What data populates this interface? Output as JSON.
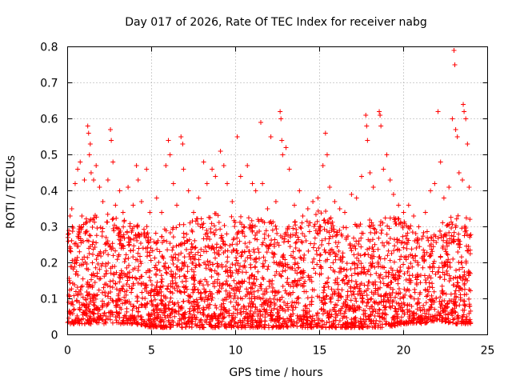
{
  "chart_data": {
    "type": "scatter",
    "title": "Day 017 of 2026, Rate Of TEC Index for receiver nabg",
    "xlabel": "GPS time / hours",
    "ylabel": "ROTI / TECUs",
    "xlim": [
      0,
      25
    ],
    "ylim": [
      0,
      0.8
    ],
    "xticks": [
      0,
      5,
      10,
      15,
      20,
      25
    ],
    "yticks": [
      0,
      0.1,
      0.2,
      0.3,
      0.4,
      0.5,
      0.6,
      0.7,
      0.8
    ],
    "xtick_labels": [
      "0",
      "5",
      "10",
      "15",
      "20",
      "25"
    ],
    "ytick_labels": [
      "0",
      "0.1",
      "0.2",
      "0.3",
      "0.4",
      "0.5",
      "0.6",
      "0.7",
      "0.8"
    ],
    "grid": true,
    "marker": "plus",
    "color": "#ff0000",
    "series": [
      {
        "points": [
          [
            0.05,
            0.26
          ],
          [
            0.15,
            0.33
          ],
          [
            0.25,
            0.35
          ],
          [
            0.45,
            0.42
          ],
          [
            0.6,
            0.46
          ],
          [
            0.75,
            0.48
          ],
          [
            0.85,
            0.33
          ],
          [
            1.0,
            0.43
          ],
          [
            1.2,
            0.58
          ],
          [
            1.25,
            0.56
          ],
          [
            1.3,
            0.5
          ],
          [
            1.35,
            0.53
          ],
          [
            1.4,
            0.45
          ],
          [
            1.55,
            0.43
          ],
          [
            1.7,
            0.47
          ],
          [
            1.9,
            0.41
          ],
          [
            2.1,
            0.37
          ],
          [
            2.4,
            0.43
          ],
          [
            2.55,
            0.57
          ],
          [
            2.6,
            0.54
          ],
          [
            2.7,
            0.48
          ],
          [
            2.85,
            0.36
          ],
          [
            3.1,
            0.4
          ],
          [
            3.3,
            0.34
          ],
          [
            3.6,
            0.41
          ],
          [
            3.9,
            0.36
          ],
          [
            4.1,
            0.47
          ],
          [
            4.2,
            0.43
          ],
          [
            4.4,
            0.37
          ],
          [
            4.7,
            0.46
          ],
          [
            4.9,
            0.34
          ],
          [
            5.3,
            0.38
          ],
          [
            5.6,
            0.34
          ],
          [
            5.85,
            0.47
          ],
          [
            6.0,
            0.54
          ],
          [
            6.1,
            0.5
          ],
          [
            6.3,
            0.42
          ],
          [
            6.5,
            0.36
          ],
          [
            6.75,
            0.55
          ],
          [
            6.85,
            0.53
          ],
          [
            6.9,
            0.46
          ],
          [
            7.2,
            0.4
          ],
          [
            7.5,
            0.34
          ],
          [
            7.8,
            0.38
          ],
          [
            8.1,
            0.48
          ],
          [
            8.3,
            0.42
          ],
          [
            8.6,
            0.46
          ],
          [
            8.8,
            0.44
          ],
          [
            9.1,
            0.51
          ],
          [
            9.3,
            0.47
          ],
          [
            9.5,
            0.42
          ],
          [
            9.8,
            0.37
          ],
          [
            10.1,
            0.55
          ],
          [
            10.3,
            0.44
          ],
          [
            10.7,
            0.47
          ],
          [
            11.0,
            0.42
          ],
          [
            11.2,
            0.4
          ],
          [
            11.5,
            0.59
          ],
          [
            11.6,
            0.42
          ],
          [
            11.9,
            0.35
          ],
          [
            12.1,
            0.55
          ],
          [
            12.4,
            0.37
          ],
          [
            12.65,
            0.62
          ],
          [
            12.7,
            0.6
          ],
          [
            12.75,
            0.54
          ],
          [
            12.8,
            0.5
          ],
          [
            13.0,
            0.52
          ],
          [
            13.2,
            0.46
          ],
          [
            13.5,
            0.36
          ],
          [
            13.8,
            0.4
          ],
          [
            14.0,
            0.33
          ],
          [
            14.3,
            0.35
          ],
          [
            14.6,
            0.37
          ],
          [
            14.9,
            0.38
          ],
          [
            15.2,
            0.47
          ],
          [
            15.35,
            0.56
          ],
          [
            15.45,
            0.5
          ],
          [
            15.6,
            0.41
          ],
          [
            15.9,
            0.37
          ],
          [
            16.2,
            0.35
          ],
          [
            16.5,
            0.34
          ],
          [
            16.9,
            0.39
          ],
          [
            17.2,
            0.38
          ],
          [
            17.5,
            0.44
          ],
          [
            17.75,
            0.61
          ],
          [
            17.8,
            0.58
          ],
          [
            17.85,
            0.54
          ],
          [
            18.0,
            0.45
          ],
          [
            18.2,
            0.41
          ],
          [
            18.55,
            0.62
          ],
          [
            18.6,
            0.61
          ],
          [
            18.65,
            0.58
          ],
          [
            18.8,
            0.46
          ],
          [
            19.0,
            0.5
          ],
          [
            19.2,
            0.43
          ],
          [
            19.4,
            0.39
          ],
          [
            19.7,
            0.36
          ],
          [
            20.0,
            0.34
          ],
          [
            20.3,
            0.36
          ],
          [
            20.6,
            0.33
          ],
          [
            20.9,
            0.3
          ],
          [
            21.3,
            0.34
          ],
          [
            21.6,
            0.4
          ],
          [
            21.85,
            0.42
          ],
          [
            22.05,
            0.62
          ],
          [
            22.2,
            0.48
          ],
          [
            22.4,
            0.38
          ],
          [
            22.7,
            0.41
          ],
          [
            22.9,
            0.6
          ],
          [
            23.0,
            0.79
          ],
          [
            23.05,
            0.75
          ],
          [
            23.1,
            0.57
          ],
          [
            23.2,
            0.55
          ],
          [
            23.3,
            0.45
          ],
          [
            23.5,
            0.43
          ],
          [
            23.55,
            0.64
          ],
          [
            23.6,
            0.62
          ],
          [
            23.7,
            0.6
          ],
          [
            23.8,
            0.53
          ],
          [
            23.9,
            0.41
          ]
        ]
      }
    ],
    "dense_envelope": {
      "x": [
        0,
        1,
        2,
        3,
        4,
        5,
        6,
        7,
        8,
        9,
        10,
        11,
        12,
        13,
        14,
        15,
        16,
        17,
        18,
        19,
        20,
        21,
        22,
        23,
        24
      ],
      "low": [
        0.03,
        0.03,
        0.03,
        0.03,
        0.03,
        0.02,
        0.02,
        0.02,
        0.02,
        0.02,
        0.02,
        0.02,
        0.02,
        0.02,
        0.02,
        0.02,
        0.02,
        0.02,
        0.02,
        0.02,
        0.03,
        0.03,
        0.04,
        0.03,
        0.03
      ],
      "high": [
        0.3,
        0.32,
        0.34,
        0.33,
        0.31,
        0.3,
        0.3,
        0.32,
        0.33,
        0.34,
        0.33,
        0.33,
        0.32,
        0.31,
        0.32,
        0.36,
        0.32,
        0.31,
        0.32,
        0.33,
        0.32,
        0.28,
        0.3,
        0.34,
        0.33
      ]
    }
  }
}
